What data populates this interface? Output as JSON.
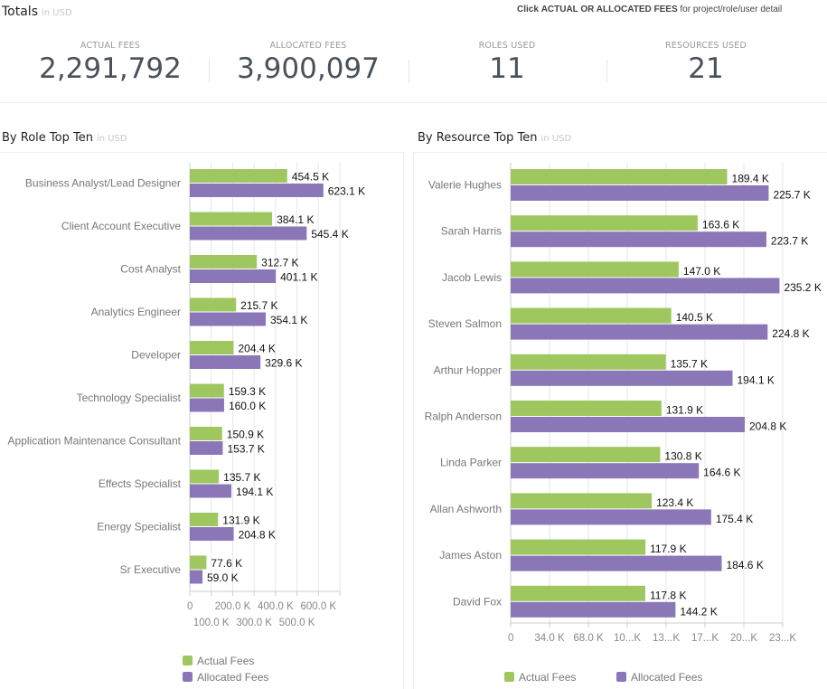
{
  "header": {
    "title": "Totals",
    "unit": "in USD",
    "hint_prefix": "Click",
    "hint_bold": "ACTUAL OR ALLOCATED FEES",
    "hint_suffix": "for project/role/user detail"
  },
  "kpis": [
    {
      "label": "ACTUAL FEES",
      "value": "2,291,792"
    },
    {
      "label": "ALLOCATED FEES",
      "value": "3,900,097"
    },
    {
      "label": "ROLES USED",
      "value": "11"
    },
    {
      "label": "RESOURCES USED",
      "value": "21"
    }
  ],
  "colors": {
    "actual": "#9fc75f",
    "allocated": "#8b76b7",
    "grid": "#e6e6e6",
    "axis": "#cccccc",
    "label": "#777777"
  },
  "panels": [
    {
      "title": "By Role Top Ten",
      "unit": "in USD"
    },
    {
      "title": "By Resource Top Ten",
      "unit": "in USD"
    }
  ],
  "chart_data": [
    {
      "type": "bar",
      "orientation": "horizontal",
      "title": "By Role Top Ten",
      "unit": "in USD",
      "categories": [
        "Business Analyst/Lead Designer",
        "Client Account Executive",
        "Cost Analyst",
        "Analytics Engineer",
        "Developer",
        "Technology Specialist",
        "Application Maintenance Consultant",
        "Effects Specialist",
        "Energy Specialist",
        "Sr Executive"
      ],
      "series": [
        {
          "name": "Actual Fees",
          "values": [
            454.5,
            384.1,
            312.7,
            215.7,
            204.4,
            159.3,
            150.9,
            135.7,
            131.9,
            77.6
          ]
        },
        {
          "name": "Allocated Fees",
          "values": [
            623.1,
            545.4,
            401.1,
            354.1,
            329.6,
            160.0,
            153.7,
            194.1,
            204.8,
            59.0
          ]
        }
      ],
      "value_labels": {
        "Actual Fees": [
          "454.5 K",
          "384.1 K",
          "312.7 K",
          "215.7 K",
          "204.4 K",
          "159.3 K",
          "150.9 K",
          "135.7 K",
          "131.9 K",
          "77.6 K"
        ],
        "Allocated Fees": [
          "623.1 K",
          "545.4 K",
          "401.1 K",
          "354.1 K",
          "329.6 K",
          "160.0 K",
          "153.7 K",
          "194.1 K",
          "204.8 K",
          "59.0 K"
        ]
      },
      "value_unit": "K",
      "xlim": [
        0,
        700
      ],
      "xticks": [
        0,
        100,
        200,
        300,
        400,
        500,
        600,
        700
      ],
      "xtick_labels": [
        "0",
        "100.0 K",
        "200.0 K",
        "300.0 K",
        "400.0 K",
        "500.0 K",
        "600.0 K",
        ""
      ],
      "grid": true,
      "legend": [
        "Actual Fees",
        "Allocated Fees"
      ],
      "legend_position": "bottom-center-stacked"
    },
    {
      "type": "bar",
      "orientation": "horizontal",
      "title": "By Resource Top Ten",
      "unit": "in USD",
      "categories": [
        "Valerie Hughes",
        "Sarah Harris",
        "Jacob Lewis",
        "Steven Salmon",
        "Arthur Hopper",
        "Ralph Anderson",
        "Linda Parker",
        "Allan Ashworth",
        "James Aston",
        "David Fox"
      ],
      "series": [
        {
          "name": "Actual Fees",
          "values": [
            189.4,
            163.6,
            147.0,
            140.5,
            135.7,
            131.9,
            130.8,
            123.4,
            117.9,
            117.8
          ]
        },
        {
          "name": "Allocated Fees",
          "values": [
            225.7,
            223.7,
            235.2,
            224.8,
            194.1,
            204.8,
            164.6,
            175.4,
            184.6,
            144.2
          ]
        }
      ],
      "value_labels": {
        "Actual Fees": [
          "189.4 K",
          "163.6 K",
          "147.0 K",
          "140.5 K",
          "135.7 K",
          "131.9 K",
          "130.8 K",
          "123.4 K",
          "117.9 K",
          "117.8 K"
        ],
        "Allocated Fees": [
          "225.7 K",
          "223.7 K",
          "235.2 K",
          "224.8 K",
          "194.1 K",
          "204.8 K",
          "164.6 K",
          "175.4 K",
          "184.6 K",
          "144.2 K"
        ]
      },
      "value_unit": "K",
      "xlim": [
        0,
        238
      ],
      "xticks": [
        0,
        34,
        68,
        102,
        136,
        170,
        204,
        238
      ],
      "xtick_labels": [
        "0",
        "34.0 K",
        "68.0 K",
        "10...K",
        "13...K",
        "17...K",
        "20...K",
        "23...K"
      ],
      "grid": true,
      "legend": [
        "Actual Fees",
        "Allocated Fees"
      ],
      "legend_position": "bottom-center-inline"
    }
  ]
}
